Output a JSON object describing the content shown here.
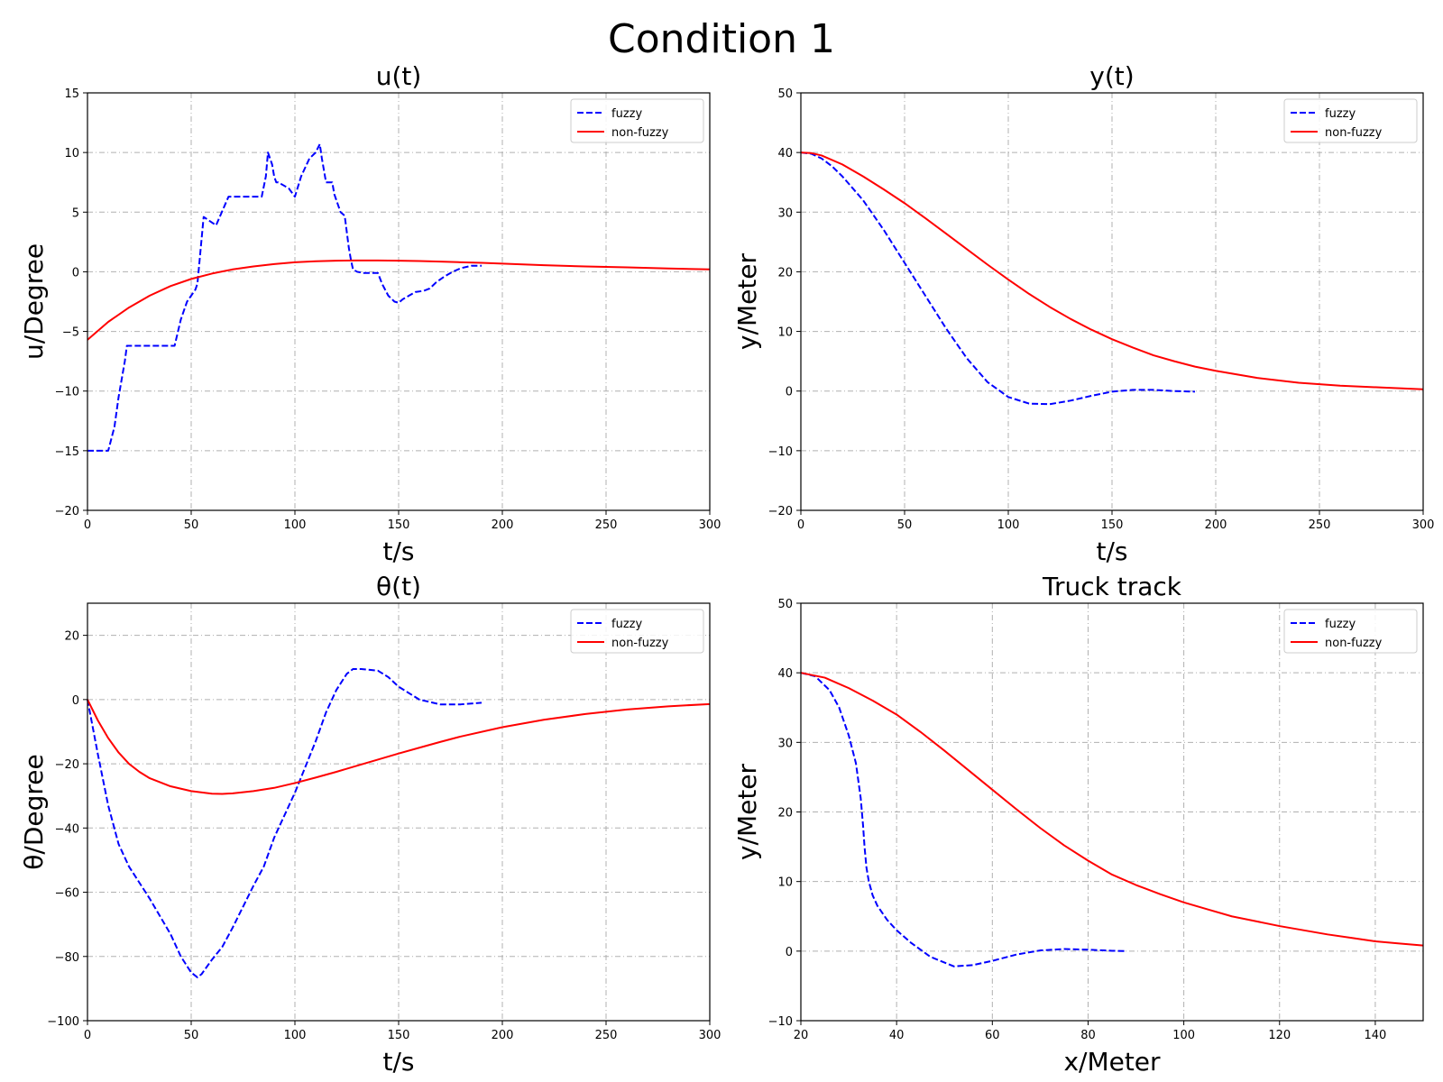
{
  "figure": {
    "title": "Condition 1"
  },
  "chart_data": [
    {
      "type": "line",
      "title": "u(t)",
      "xlabel": "t/s",
      "ylabel": "u/Degree",
      "xlim": [
        0,
        300
      ],
      "ylim": [
        -20,
        15
      ],
      "xticks": [
        0,
        50,
        100,
        150,
        200,
        250,
        300
      ],
      "yticks": [
        -20,
        -15,
        -10,
        -5,
        0,
        5,
        10,
        15
      ],
      "grid": true,
      "legend_position": "top-right",
      "series": [
        {
          "name": "fuzzy",
          "color": "#0000ff",
          "style": "dashed",
          "x": [
            0,
            10,
            13,
            15,
            18,
            19,
            42,
            45,
            48,
            52,
            53,
            56,
            62,
            68,
            75,
            84,
            86,
            87,
            89,
            90,
            91,
            92,
            95,
            97,
            100,
            103,
            107,
            110,
            112,
            113,
            114,
            115,
            116,
            117,
            118,
            119,
            122,
            124,
            126,
            127,
            128,
            130,
            133,
            135,
            140,
            142,
            145,
            148,
            150,
            152,
            155,
            158,
            162,
            165,
            168,
            172,
            176,
            180,
            185,
            190
          ],
          "y": [
            -15,
            -15,
            -13,
            -10.5,
            -7.5,
            -6.2,
            -6.2,
            -4,
            -2.5,
            -1.5,
            -1,
            4.6,
            3.9,
            6.3,
            6.3,
            6.3,
            8,
            10,
            9,
            8,
            7.5,
            7.5,
            7.2,
            7,
            6.3,
            8,
            9.5,
            10,
            10.7,
            9.5,
            8.5,
            7.5,
            7.5,
            7.5,
            7.5,
            6.5,
            5,
            4.7,
            2,
            1,
            0.2,
            0,
            -0.1,
            -0.1,
            -0.1,
            -1,
            -2,
            -2.5,
            -2.6,
            -2.3,
            -2,
            -1.7,
            -1.6,
            -1.4,
            -0.9,
            -0.4,
            0,
            0.3,
            0.5,
            0.5
          ]
        },
        {
          "name": "non-fuzzy",
          "color": "#ff0000",
          "style": "solid",
          "x": [
            0,
            10,
            20,
            30,
            40,
            50,
            60,
            70,
            80,
            90,
            100,
            110,
            120,
            130,
            140,
            150,
            160,
            170,
            180,
            190,
            200,
            220,
            240,
            260,
            280,
            300
          ],
          "y": [
            -5.7,
            -4.2,
            -3.0,
            -2.0,
            -1.2,
            -0.6,
            -0.15,
            0.2,
            0.45,
            0.65,
            0.8,
            0.88,
            0.93,
            0.95,
            0.95,
            0.93,
            0.9,
            0.85,
            0.8,
            0.75,
            0.68,
            0.55,
            0.45,
            0.37,
            0.28,
            0.2
          ]
        }
      ]
    },
    {
      "type": "line",
      "title": "y(t)",
      "xlabel": "t/s",
      "ylabel": "y/Meter",
      "xlim": [
        0,
        300
      ],
      "ylim": [
        -20,
        50
      ],
      "xticks": [
        0,
        50,
        100,
        150,
        200,
        250,
        300
      ],
      "yticks": [
        -20,
        -10,
        0,
        10,
        20,
        30,
        40,
        50
      ],
      "grid": true,
      "legend_position": "top-right",
      "series": [
        {
          "name": "fuzzy",
          "color": "#0000ff",
          "style": "dashed",
          "x": [
            0,
            5,
            10,
            15,
            20,
            25,
            30,
            40,
            50,
            60,
            70,
            80,
            90,
            100,
            110,
            120,
            130,
            140,
            150,
            160,
            170,
            180,
            190
          ],
          "y": [
            40,
            39.8,
            39,
            37.7,
            36,
            34,
            32,
            27,
            21.5,
            16,
            10.5,
            5.5,
            1.5,
            -1,
            -2.1,
            -2.2,
            -1.6,
            -0.8,
            -0.1,
            0.2,
            0.2,
            0,
            -0.1
          ]
        },
        {
          "name": "non-fuzzy",
          "color": "#ff0000",
          "style": "solid",
          "x": [
            0,
            5,
            10,
            20,
            30,
            40,
            50,
            60,
            70,
            80,
            90,
            100,
            110,
            120,
            130,
            140,
            150,
            160,
            170,
            180,
            190,
            200,
            220,
            240,
            260,
            280,
            300
          ],
          "y": [
            40,
            39.9,
            39.5,
            38,
            36,
            33.8,
            31.5,
            29,
            26.4,
            23.8,
            21.2,
            18.7,
            16.3,
            14.1,
            12.1,
            10.3,
            8.7,
            7.3,
            6.0,
            5.0,
            4.1,
            3.4,
            2.2,
            1.4,
            0.9,
            0.6,
            0.3
          ]
        }
      ]
    },
    {
      "type": "line",
      "title": "θ(t)",
      "xlabel": "t/s",
      "ylabel": "θ/Degree",
      "xlim": [
        0,
        300
      ],
      "ylim": [
        -100,
        30
      ],
      "xticks": [
        0,
        50,
        100,
        150,
        200,
        250,
        300
      ],
      "yticks": [
        -100,
        -80,
        -60,
        -40,
        -20,
        0,
        20
      ],
      "grid": true,
      "legend_position": "top-right",
      "series": [
        {
          "name": "fuzzy",
          "color": "#0000ff",
          "style": "dashed",
          "x": [
            0,
            5,
            10,
            15,
            20,
            30,
            40,
            45,
            50,
            53,
            55,
            60,
            65,
            70,
            80,
            85,
            90,
            100,
            110,
            115,
            120,
            125,
            128,
            132,
            140,
            145,
            150,
            160,
            170,
            180,
            190
          ],
          "y": [
            0,
            -17,
            -33,
            -45,
            -52,
            -62,
            -73,
            -80,
            -85,
            -86.5,
            -85.5,
            -81,
            -77,
            -71,
            -58,
            -52,
            -43,
            -29,
            -13,
            -4,
            3,
            8,
            9.5,
            9.5,
            9,
            7,
            4,
            0,
            -1.5,
            -1.5,
            -1
          ]
        },
        {
          "name": "non-fuzzy",
          "color": "#ff0000",
          "style": "solid",
          "x": [
            0,
            5,
            10,
            15,
            20,
            25,
            30,
            40,
            50,
            60,
            65,
            70,
            80,
            90,
            100,
            110,
            120,
            130,
            140,
            150,
            160,
            170,
            180,
            200,
            220,
            240,
            260,
            280,
            300
          ],
          "y": [
            0,
            -6.5,
            -12,
            -16.5,
            -20,
            -22.5,
            -24.5,
            -27,
            -28.5,
            -29.3,
            -29.4,
            -29.2,
            -28.5,
            -27.5,
            -26,
            -24.3,
            -22.5,
            -20.6,
            -18.7,
            -16.8,
            -15,
            -13.2,
            -11.5,
            -8.6,
            -6.3,
            -4.5,
            -3.1,
            -2.1,
            -1.4
          ]
        }
      ]
    },
    {
      "type": "line",
      "title": "Truck track",
      "xlabel": "x/Meter",
      "ylabel": "y/Meter",
      "xlim": [
        20,
        150
      ],
      "ylim": [
        -10,
        50
      ],
      "xticks": [
        20,
        40,
        60,
        80,
        100,
        120,
        140
      ],
      "yticks": [
        -10,
        0,
        10,
        20,
        30,
        40,
        50
      ],
      "grid": true,
      "legend_position": "top-right",
      "series": [
        {
          "name": "fuzzy",
          "color": "#0000ff",
          "style": "dashed",
          "x": [
            20,
            23,
            26,
            28,
            30,
            31.5,
            32.5,
            33,
            33.3,
            33.7,
            34.2,
            35,
            36,
            38,
            40,
            43,
            47,
            52,
            56,
            60,
            65,
            70,
            75,
            80,
            85,
            88
          ],
          "y": [
            40,
            39.5,
            37.5,
            35,
            31,
            27,
            22,
            18,
            15,
            12,
            10,
            8,
            6.5,
            4.5,
            3,
            1.2,
            -0.8,
            -2.2,
            -2,
            -1.4,
            -0.5,
            0.1,
            0.3,
            0.2,
            0.05,
            0
          ]
        },
        {
          "name": "non-fuzzy",
          "color": "#ff0000",
          "style": "solid",
          "x": [
            20,
            25,
            30,
            35,
            40,
            45,
            50,
            55,
            60,
            65,
            70,
            75,
            80,
            85,
            90,
            95,
            100,
            105,
            110,
            115,
            120,
            125,
            130,
            135,
            140,
            145,
            150
          ],
          "y": [
            40,
            39.3,
            37.8,
            36,
            34,
            31.5,
            28.8,
            26,
            23.2,
            20.4,
            17.7,
            15.2,
            13,
            11,
            9.5,
            8.2,
            7,
            6,
            5,
            4.3,
            3.6,
            3,
            2.4,
            1.9,
            1.4,
            1.1,
            0.8
          ]
        }
      ]
    }
  ]
}
